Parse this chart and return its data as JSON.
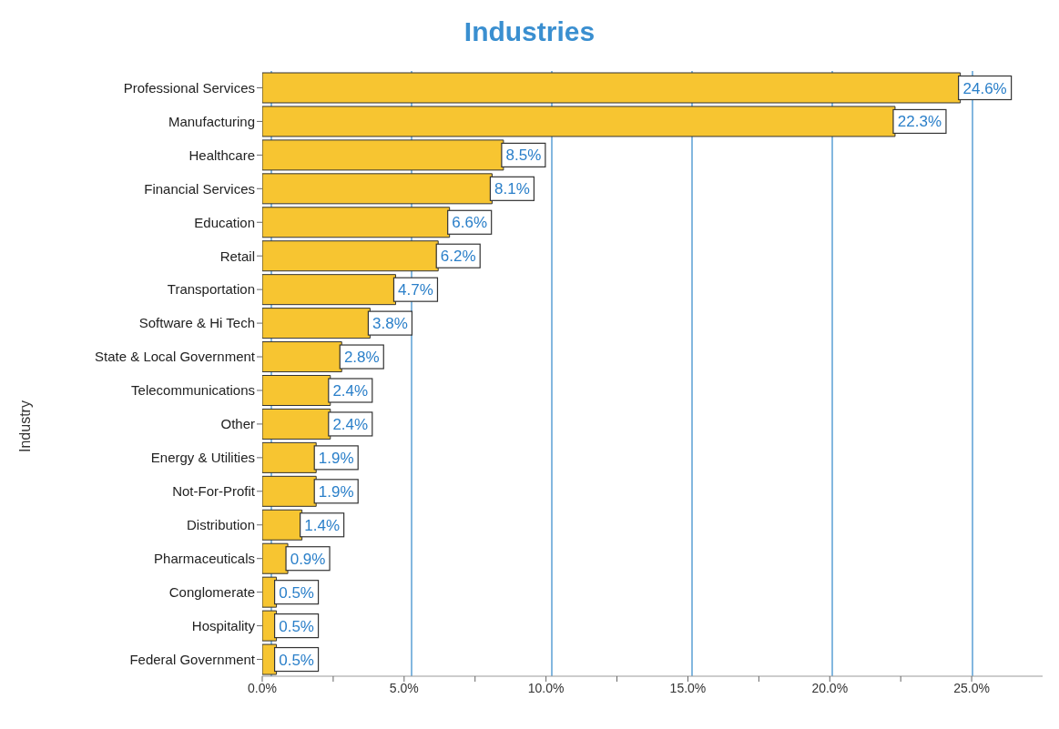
{
  "chart_data": {
    "type": "bar",
    "orientation": "horizontal",
    "title": "Industries",
    "ylabel": "Industry",
    "categories": [
      "Professional Services",
      "Manufacturing",
      "Healthcare",
      "Financial Services",
      "Education",
      "Retail",
      "Transportation",
      "Software & Hi Tech",
      "State & Local Government",
      "Telecommunications",
      "Other",
      "Energy & Utilities",
      "Not-For-Profit",
      "Distribution",
      "Pharmaceuticals",
      "Conglomerate",
      "Hospitality",
      "Federal Government"
    ],
    "values": [
      24.6,
      22.3,
      8.5,
      8.1,
      6.6,
      6.2,
      4.7,
      3.8,
      2.8,
      2.4,
      2.4,
      1.9,
      1.9,
      1.4,
      0.9,
      0.5,
      0.5,
      0.5
    ],
    "value_labels": [
      "24.6%",
      "22.3%",
      "8.5%",
      "8.1%",
      "6.6%",
      "6.2%",
      "4.7%",
      "3.8%",
      "2.8%",
      "2.4%",
      "2.4%",
      "1.9%",
      "1.9%",
      "1.4%",
      "0.9%",
      "0.5%",
      "0.5%",
      "0.5%"
    ],
    "color": "#f7c531",
    "xlim": [
      0,
      27.5
    ],
    "xticks": [
      {
        "value": 0,
        "label": "0.0%"
      },
      {
        "value": 2.5,
        "label": null
      },
      {
        "value": 5,
        "label": "5.0%"
      },
      {
        "value": 7.5,
        "label": null
      },
      {
        "value": 10,
        "label": "10.0%"
      },
      {
        "value": 12.5,
        "label": null
      },
      {
        "value": 15,
        "label": "15.0%"
      },
      {
        "value": 17.5,
        "label": null
      },
      {
        "value": 20,
        "label": "20.0%"
      },
      {
        "value": 22.5,
        "label": null
      },
      {
        "value": 25,
        "label": "25.0%"
      }
    ],
    "grid": "x"
  }
}
